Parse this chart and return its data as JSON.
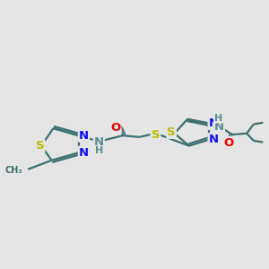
{
  "background_color": "#e5e5e5",
  "bond_color": "#3d7070",
  "N_color": "#1010ee",
  "S_color": "#bbbb00",
  "O_color": "#ee0000",
  "NH_color": "#5a9090",
  "line_width": 1.6,
  "font_size": 9.5,
  "figsize": [
    3.0,
    3.0
  ],
  "dpi": 100,
  "xlim": [
    0,
    10
  ],
  "ylim": [
    2,
    8
  ]
}
